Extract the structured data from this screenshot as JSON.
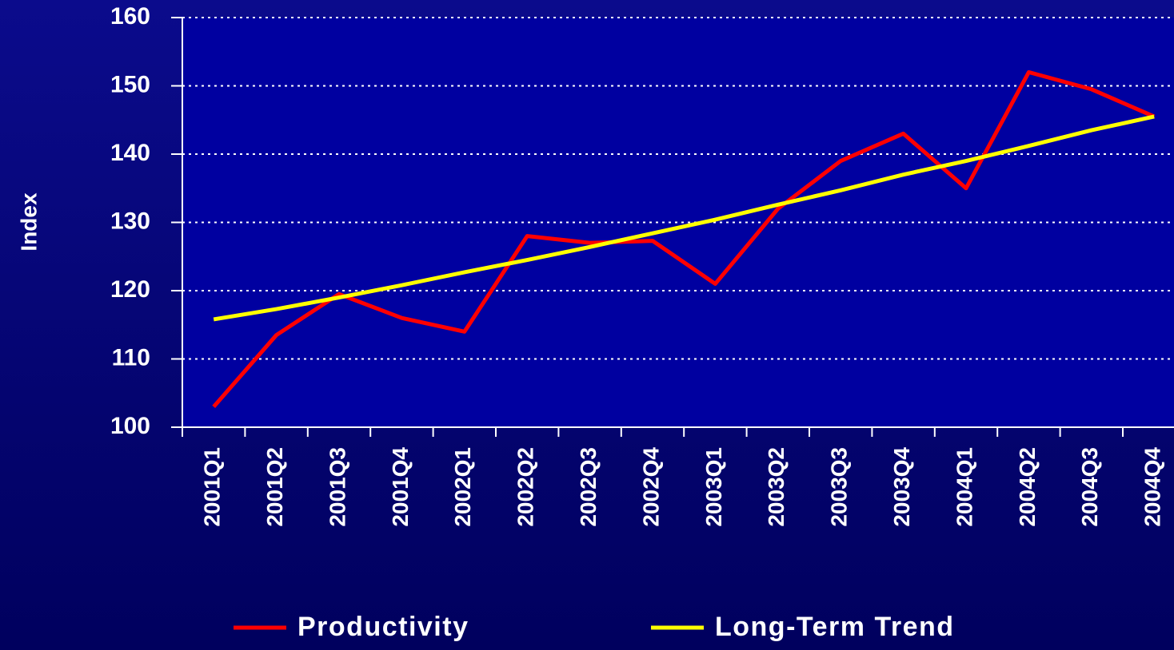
{
  "chart_data": {
    "type": "line",
    "y_label": "Index",
    "categories": [
      "2001Q1",
      "2001Q2",
      "2001Q3",
      "2001Q4",
      "2002Q1",
      "2002Q2",
      "2002Q3",
      "2002Q4",
      "2003Q1",
      "2003Q2",
      "2003Q3",
      "2003Q4",
      "2004Q1",
      "2004Q2",
      "2004Q3",
      "2004Q4"
    ],
    "series": [
      {
        "name": "Productivity",
        "color": "#ff0000",
        "values": [
          103,
          113.5,
          119.5,
          116,
          114,
          128,
          127,
          127.3,
          121,
          132,
          139,
          143,
          135,
          152,
          149.5,
          145.5
        ]
      },
      {
        "name": "Long-Term Trend",
        "color": "#ffff00",
        "values": [
          115.8,
          117.3,
          119,
          120.8,
          122.7,
          124.5,
          126.4,
          128.4,
          130.4,
          132.6,
          134.7,
          137,
          139,
          141.2,
          143.5,
          145.5
        ]
      }
    ],
    "ylim": [
      100,
      160
    ],
    "yticks": [
      100,
      110,
      120,
      130,
      140,
      150,
      160
    ],
    "grid": true,
    "legend": "bottom"
  }
}
